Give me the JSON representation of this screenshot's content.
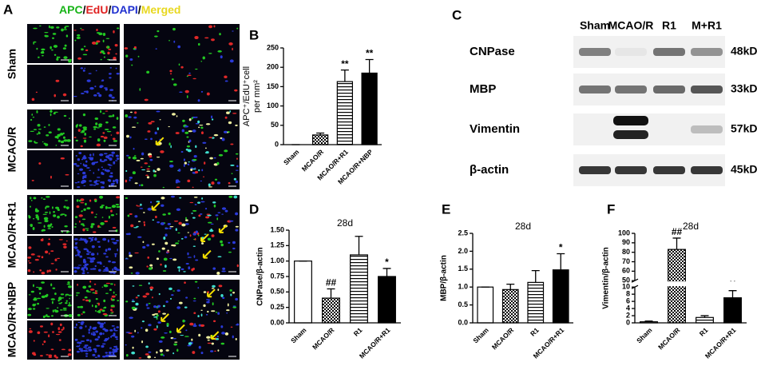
{
  "panel_a": {
    "label": "A",
    "legend": [
      {
        "text": "APC",
        "color": "#18b418"
      },
      {
        "text": "/",
        "color": "#000000"
      },
      {
        "text": "EdU",
        "color": "#e02020"
      },
      {
        "text": "/",
        "color": "#000000"
      },
      {
        "text": "DAPI",
        "color": "#2030d0"
      },
      {
        "text": "/",
        "color": "#000000"
      },
      {
        "text": "Merged",
        "color": "#e8d820"
      }
    ],
    "rows": [
      "Sham",
      "MCAO/R",
      "MCAO/R+R1",
      "MCAO/R+NBP"
    ]
  },
  "panel_c": {
    "label": "C",
    "lanes": [
      "Sham",
      "MCAO/R",
      "R1",
      "M+R1"
    ],
    "proteins": [
      {
        "name": "CNPase",
        "size": "48kDa"
      },
      {
        "name": "MBP",
        "size": "33kDa"
      },
      {
        "name": "Vimentin",
        "size": "57kDa"
      },
      {
        "name": "β-actin",
        "size": "45kDa"
      }
    ]
  },
  "chart_data": [
    {
      "type": "bar",
      "label": "B",
      "ylabel": [
        "APC⁺/EdU⁺cell",
        "per mm²"
      ],
      "categories": [
        "Sham",
        "MCAO/R",
        "MCAO/R+R1",
        "MCAO/R+NBP"
      ],
      "values": [
        0,
        25,
        163,
        185
      ],
      "errors": [
        0,
        5,
        30,
        35
      ],
      "sig": [
        null,
        null,
        "**",
        "**"
      ],
      "patterns": [
        "white",
        "checker",
        "hstripe",
        "black"
      ],
      "ylim": [
        0,
        250
      ],
      "yticks": [
        0,
        50,
        100,
        150,
        200,
        250
      ]
    },
    {
      "type": "bar",
      "label": "D",
      "title": "28d",
      "ylabel": "CNPase/β-actin",
      "categories": [
        "Sham",
        "MCAO/R",
        "R1",
        "MCAO/R+R1"
      ],
      "values": [
        1.0,
        0.4,
        1.1,
        0.75
      ],
      "errors": [
        0,
        0.15,
        0.3,
        0.13
      ],
      "sig": [
        null,
        "##",
        null,
        "*"
      ],
      "patterns": [
        "white",
        "checker",
        "hstripe",
        "black"
      ],
      "ylim": [
        0,
        1.5
      ],
      "yticks": [
        {
          "value": 0,
          "label": "0.00"
        },
        {
          "value": 0.25,
          "label": "0.25"
        },
        {
          "value": 0.5,
          "label": "0.50"
        },
        {
          "value": 0.75,
          "label": "0.75"
        },
        {
          "value": 1,
          "label": "1.00"
        },
        {
          "value": 1.25,
          "label": "1.25"
        },
        {
          "value": 1.5,
          "label": "1.50"
        }
      ]
    },
    {
      "type": "bar",
      "label": "E",
      "title": "28d",
      "ylabel": "MBP/β-actin",
      "categories": [
        "Sham",
        "MCAO/R",
        "R1",
        "MCAO/R+R1"
      ],
      "values": [
        1.0,
        0.93,
        1.13,
        1.48
      ],
      "errors": [
        0,
        0.15,
        0.33,
        0.45
      ],
      "sig": [
        null,
        null,
        null,
        "*"
      ],
      "patterns": [
        "white",
        "checker",
        "hstripe",
        "black"
      ],
      "ylim": [
        0,
        2.5
      ],
      "yticks": [
        {
          "value": 0,
          "label": "0.0"
        },
        {
          "value": 0.5,
          "label": "0.5"
        },
        {
          "value": 1,
          "label": "1.0"
        },
        {
          "value": 1.5,
          "label": "1.5"
        },
        {
          "value": 2,
          "label": "2.0"
        },
        {
          "value": 2.5,
          "label": "2.5"
        }
      ]
    },
    {
      "type": "bar",
      "label": "F",
      "title": "28d",
      "ylabel": "Vimentin/β-actin",
      "categories": [
        "Sham",
        "MCAO/R",
        "R1",
        "MCAO/R+R1"
      ],
      "values": [
        0.3,
        83,
        1.5,
        7
      ],
      "errors": [
        0.2,
        12,
        0.5,
        2
      ],
      "sig": [
        null,
        "##",
        null,
        "**"
      ],
      "patterns": [
        "white",
        "checker",
        "hstripe",
        "black"
      ],
      "ylim": [
        0,
        100
      ],
      "ybreak": [
        10,
        50
      ],
      "yticks": [
        0,
        2,
        4,
        6,
        8,
        10,
        50,
        60,
        70,
        80,
        90,
        100
      ]
    }
  ]
}
